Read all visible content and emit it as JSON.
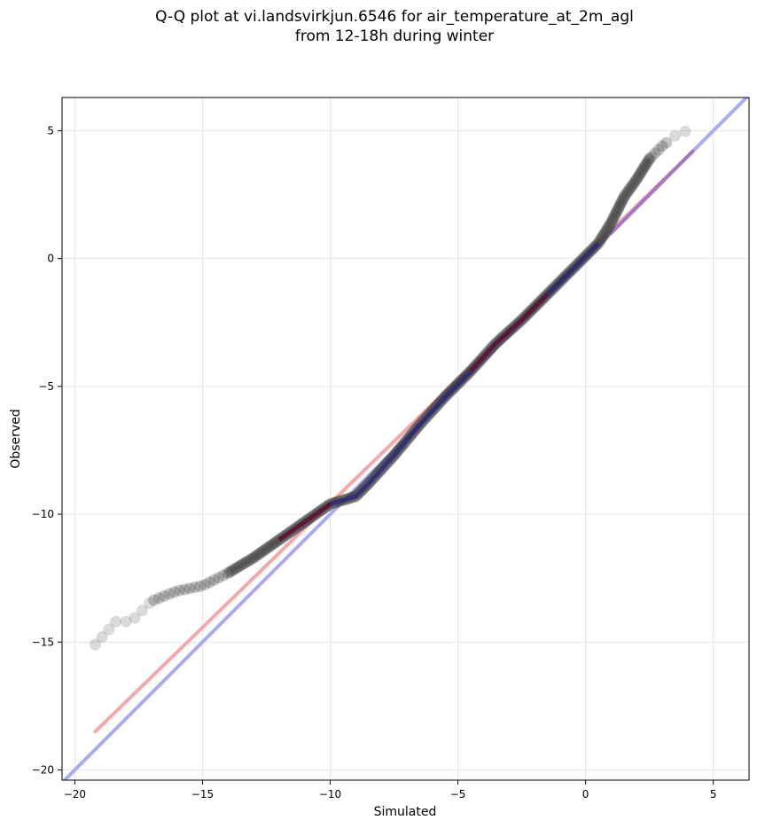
{
  "chart_data": {
    "type": "scatter",
    "title": "Q-Q plot at vi.landsvirkjun.6546 for air_temperature_at_2m_agl",
    "subtitle": "from 12-18h during winter",
    "xlabel": "Simulated",
    "ylabel": "Observed",
    "xlim": [
      -20.5,
      6.4
    ],
    "ylim": [
      -20.4,
      6.3
    ],
    "xticks": [
      -20,
      -15,
      -10,
      -5,
      0,
      5
    ],
    "yticks": [
      -20,
      -15,
      -10,
      -5,
      0,
      5
    ],
    "xtick_labels": [
      "−20",
      "−15",
      "−10",
      "−5",
      "0",
      "5"
    ],
    "ytick_labels": [
      "−20",
      "−15",
      "−10",
      "−5",
      "0",
      "5"
    ],
    "grid": true,
    "colors": {
      "points": "#333333",
      "identity_line": "#aaaaf4",
      "fit_line": "#f4a8ab",
      "fit_core": "#8b0000",
      "dense_core": "#1a1a8a",
      "purple_tail": "#a070c8"
    },
    "lines": [
      {
        "role": "identity",
        "x": [
          -20.5,
          6.4
        ],
        "y": [
          -20.5,
          6.4
        ]
      },
      {
        "role": "linear-fit",
        "x": [
          -19.2,
          4.2
        ],
        "y": [
          -18.5,
          4.2
        ]
      }
    ],
    "qq_curve": [
      [
        -19.2,
        -15.1
      ],
      [
        -18.4,
        -14.2
      ],
      [
        -17.8,
        -14.2
      ],
      [
        -17.0,
        -13.4
      ],
      [
        -16.0,
        -13.0
      ],
      [
        -15.0,
        -12.8
      ],
      [
        -14.0,
        -12.3
      ],
      [
        -13.0,
        -11.7
      ],
      [
        -12.0,
        -11.0
      ],
      [
        -11.0,
        -10.3
      ],
      [
        -10.0,
        -9.6
      ],
      [
        -9.0,
        -9.3
      ],
      [
        -8.5,
        -8.8
      ],
      [
        -7.5,
        -7.7
      ],
      [
        -6.5,
        -6.5
      ],
      [
        -5.5,
        -5.4
      ],
      [
        -4.5,
        -4.4
      ],
      [
        -3.5,
        -3.3
      ],
      [
        -2.5,
        -2.4
      ],
      [
        -1.5,
        -1.4
      ],
      [
        -0.5,
        -0.4
      ],
      [
        0.0,
        0.1
      ],
      [
        0.5,
        0.6
      ],
      [
        1.0,
        1.4
      ],
      [
        1.5,
        2.4
      ],
      [
        2.0,
        3.1
      ],
      [
        2.5,
        3.9
      ],
      [
        3.0,
        4.4
      ],
      [
        3.5,
        4.8
      ],
      [
        4.2,
        5.1
      ]
    ]
  }
}
